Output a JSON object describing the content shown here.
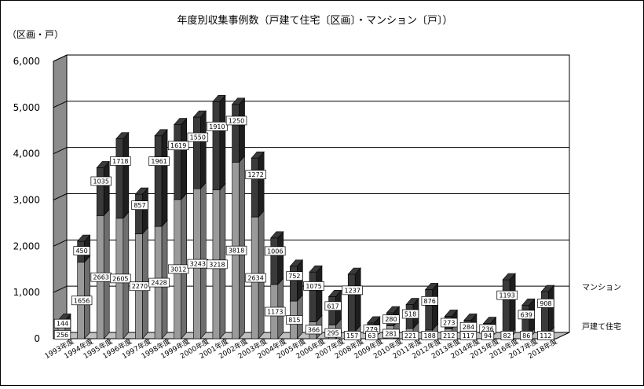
{
  "chart_data": {
    "type": "bar",
    "stacked": true,
    "three_d": true,
    "title": "年度別収集事例数（戸建て住宅〔区画〕・マンション〔戸〕）",
    "ylabel": "（区画・戸）",
    "ylim": [
      0,
      6000
    ],
    "yticks": [
      "0",
      "1,000",
      "2,000",
      "3,000",
      "4,000",
      "5,000",
      "6,000"
    ],
    "grid": true,
    "legend_position": "right",
    "categories": [
      "1993年度",
      "1994年度",
      "1995年度",
      "1996年度",
      "1997年度",
      "1998年度",
      "1999年度",
      "2000年度",
      "2001年度",
      "2002年度",
      "2003年度",
      "2004年度",
      "2005年度",
      "2006年度",
      "2007年度",
      "2008年度",
      "2009年度",
      "2010年度",
      "2011年度",
      "2012年度",
      "2013年度",
      "2014年度",
      "2015年度",
      "2016年度",
      "2017年度",
      "2018年度"
    ],
    "series": [
      {
        "name": "戸建て住宅",
        "color": "#9a9a9a",
        "values": [
          256,
          1656,
          2663,
          2605,
          2270,
          2428,
          3012,
          3243,
          3218,
          3818,
          2634,
          1173,
          815,
          366,
          295,
          157,
          63,
          281,
          221,
          188,
          212,
          117,
          94,
          82,
          86,
          112
        ]
      },
      {
        "name": "マンション",
        "color": "#3a3a3a",
        "values": [
          144,
          450,
          1035,
          1718,
          857,
          1961,
          1619,
          1550,
          1910,
          1250,
          1272,
          1006,
          752,
          1075,
          617,
          1237,
          279,
          280,
          518,
          876,
          273,
          284,
          236,
          1193,
          639,
          908
        ]
      }
    ]
  }
}
